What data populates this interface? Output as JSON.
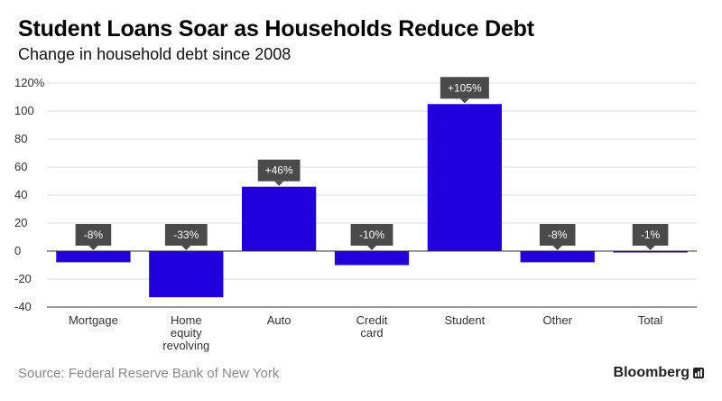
{
  "header": {
    "title": "Student Loans Soar as Households Reduce Debt",
    "subtitle": "Change in household debt since 2008"
  },
  "footer": {
    "source": "Source: Federal Reserve Bank of New York",
    "brand": "Bloomberg"
  },
  "colors": {
    "bar": "#2200dd",
    "label_box": "#4a4a4a",
    "grid": "#dddddd",
    "axis": "#333333"
  },
  "chart_data": {
    "type": "bar",
    "title": "Student Loans Soar as Households Reduce Debt",
    "subtitle": "Change in household debt since 2008",
    "xlabel": "",
    "ylabel": "",
    "categories": [
      [
        "Mortgage"
      ],
      [
        "Home",
        "equity",
        "revolving"
      ],
      [
        "Auto"
      ],
      [
        "Credit",
        "card"
      ],
      [
        "Student"
      ],
      [
        "Other"
      ],
      [
        "Total"
      ]
    ],
    "values": [
      -8,
      -33,
      46,
      -10,
      105,
      -8,
      -1
    ],
    "data_labels": [
      "-8%",
      "-33%",
      "+46%",
      "-10%",
      "+105%",
      "-8%",
      "-1%"
    ],
    "ylim": [
      -40,
      120
    ],
    "yticks": [
      -40,
      -20,
      0,
      20,
      40,
      60,
      80,
      100,
      120
    ],
    "ytick_labels": [
      "-40",
      "-20",
      "0",
      "20",
      "40",
      "60",
      "80",
      "100",
      "120%"
    ],
    "grid": true,
    "legend": "none"
  }
}
